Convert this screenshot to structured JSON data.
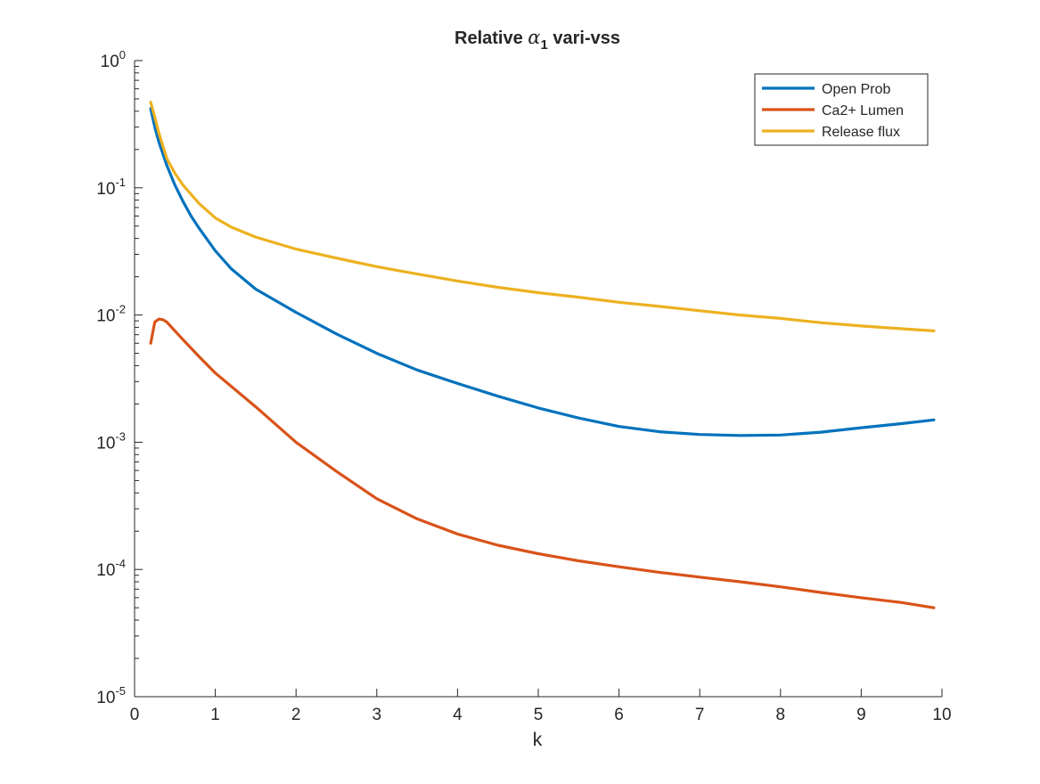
{
  "chart_data": {
    "type": "line",
    "title": {
      "prefix": "Relative ",
      "symbol": "α",
      "subscript": "1",
      "suffix": " vari-vss"
    },
    "xlabel": "k",
    "ylabel": "",
    "xlim": [
      0,
      10
    ],
    "ylim": [
      1e-05,
      1
    ],
    "yscale": "log",
    "grid": false,
    "legend_position": "top-right",
    "x_ticks": [
      "0",
      "1",
      "2",
      "3",
      "4",
      "5",
      "6",
      "7",
      "8",
      "9",
      "10"
    ],
    "y_ticks": [
      {
        "base": "10",
        "exp": "-5"
      },
      {
        "base": "10",
        "exp": "-4"
      },
      {
        "base": "10",
        "exp": "-3"
      },
      {
        "base": "10",
        "exp": "-2"
      },
      {
        "base": "10",
        "exp": "-1"
      },
      {
        "base": "10",
        "exp": "0"
      }
    ],
    "series": [
      {
        "name": "Open Prob",
        "color": "#0072BD",
        "x": [
          0.2,
          0.25,
          0.3,
          0.4,
          0.5,
          0.6,
          0.7,
          0.8,
          1,
          1.2,
          1.5,
          2,
          2.5,
          3,
          3.5,
          4,
          4.5,
          5,
          5.5,
          6,
          6.5,
          7,
          7.5,
          8,
          8.5,
          9,
          9.5,
          9.9
        ],
        "y": [
          0.42,
          0.3,
          0.23,
          0.15,
          0.105,
          0.078,
          0.06,
          0.048,
          0.032,
          0.023,
          0.016,
          0.0105,
          0.0071,
          0.005,
          0.0037,
          0.0029,
          0.0023,
          0.00186,
          0.00155,
          0.00133,
          0.00121,
          0.00115,
          0.00113,
          0.00114,
          0.0012,
          0.0013,
          0.0014,
          0.0015
        ]
      },
      {
        "name": "Ca2+ Lumen",
        "color": "#D95319",
        "x": [
          0.2,
          0.25,
          0.3,
          0.35,
          0.4,
          0.5,
          0.6,
          0.8,
          1,
          1.5,
          2,
          2.5,
          3,
          3.5,
          4,
          4.5,
          5,
          5.5,
          6,
          6.5,
          7,
          7.5,
          8,
          8.5,
          9,
          9.5,
          9.9
        ],
        "y": [
          0.006,
          0.0088,
          0.0093,
          0.0092,
          0.0088,
          0.0075,
          0.0064,
          0.0047,
          0.0035,
          0.0019,
          0.001,
          0.00059,
          0.00036,
          0.00025,
          0.00019,
          0.000155,
          0.000133,
          0.000117,
          0.000105,
          9.5e-05,
          8.7e-05,
          8e-05,
          7.3e-05,
          6.6e-05,
          6e-05,
          5.5e-05,
          5e-05
        ]
      },
      {
        "name": "Release flux",
        "color": "#EDB120",
        "x": [
          0.2,
          0.25,
          0.3,
          0.4,
          0.5,
          0.6,
          0.8,
          1,
          1.2,
          1.5,
          2,
          2.5,
          3,
          3.5,
          4,
          4.5,
          5,
          5.5,
          6,
          6.5,
          7,
          7.5,
          8,
          8.5,
          9,
          9.5,
          9.9
        ],
        "y": [
          0.47,
          0.36,
          0.27,
          0.17,
          0.13,
          0.105,
          0.075,
          0.058,
          0.049,
          0.041,
          0.033,
          0.028,
          0.024,
          0.021,
          0.0185,
          0.0165,
          0.015,
          0.0138,
          0.0126,
          0.0117,
          0.0108,
          0.01,
          0.0094,
          0.0087,
          0.0082,
          0.0078,
          0.0075
        ]
      }
    ]
  }
}
